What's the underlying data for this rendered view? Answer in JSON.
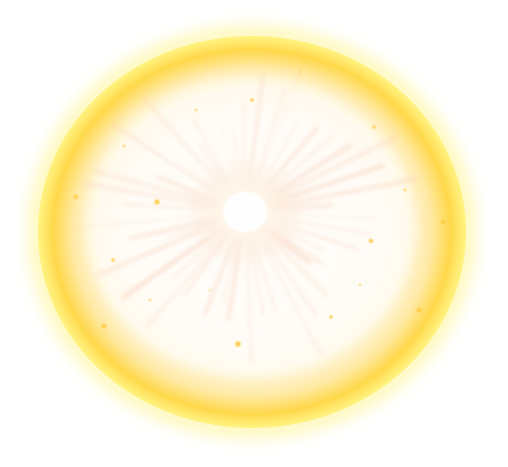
{
  "scene": {
    "subject": "glowing-orb",
    "colors": {
      "background": "#ffffff",
      "rim_outer": "#fff27a",
      "rim": "#ffd84a",
      "rim_inner": "#ffe9a3",
      "halo": "#fff6dc",
      "core": "#fffdf5",
      "ray": "#f7c9b0",
      "sparkle": "#ffc93c"
    }
  }
}
